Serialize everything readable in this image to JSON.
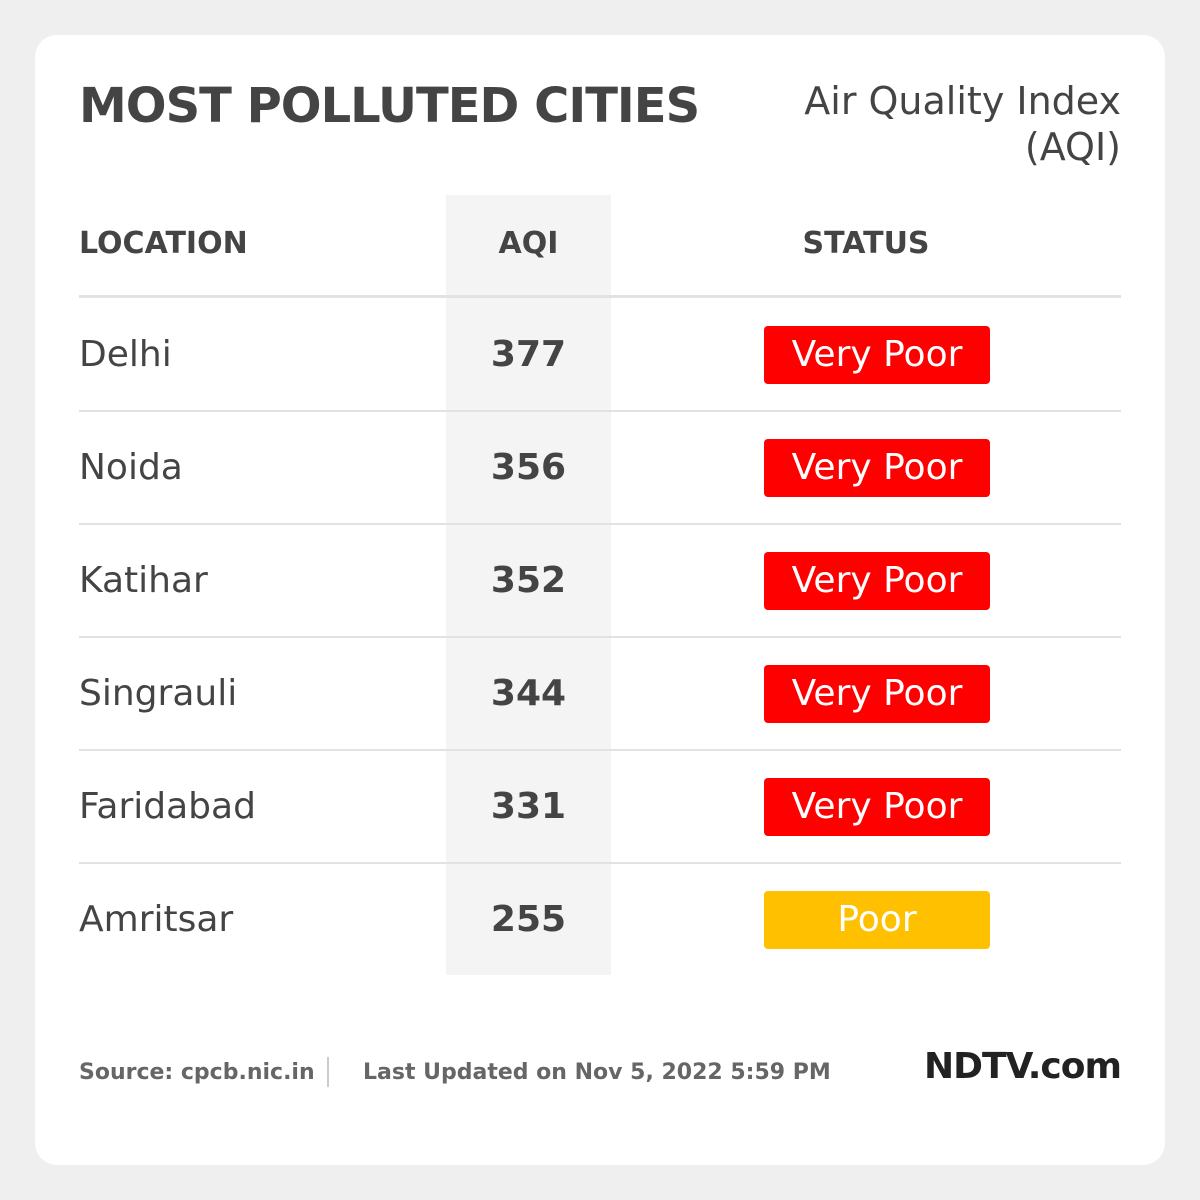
{
  "header": {
    "title": "MOST POLLUTED CITIES",
    "subtitle": [
      "Air Quality Index",
      "(AQI)"
    ]
  },
  "table": {
    "columns": [
      "LOCATION",
      "AQI",
      "STATUS"
    ],
    "rows": [
      {
        "location": "Delhi",
        "aqi": "377",
        "status": "Very Poor",
        "color": "#ff0000"
      },
      {
        "location": "Noida",
        "aqi": "356",
        "status": "Very Poor",
        "color": "#ff0000"
      },
      {
        "location": "Katihar",
        "aqi": "352",
        "status": "Very Poor",
        "color": "#ff0000"
      },
      {
        "location": "Singrauli",
        "aqi": "344",
        "status": "Very Poor",
        "color": "#ff0000"
      },
      {
        "location": "Faridabad",
        "aqi": "331",
        "status": "Very Poor",
        "color": "#ff0000"
      },
      {
        "location": "Amritsar",
        "aqi": "255",
        "status": "Poor",
        "color": "#ffc000"
      }
    ]
  },
  "footer": {
    "source": "Source: cpcb.nic.in",
    "updated": "Last Updated on Nov 5, 2022 5:59 PM",
    "brand": "NDTV.com"
  }
}
